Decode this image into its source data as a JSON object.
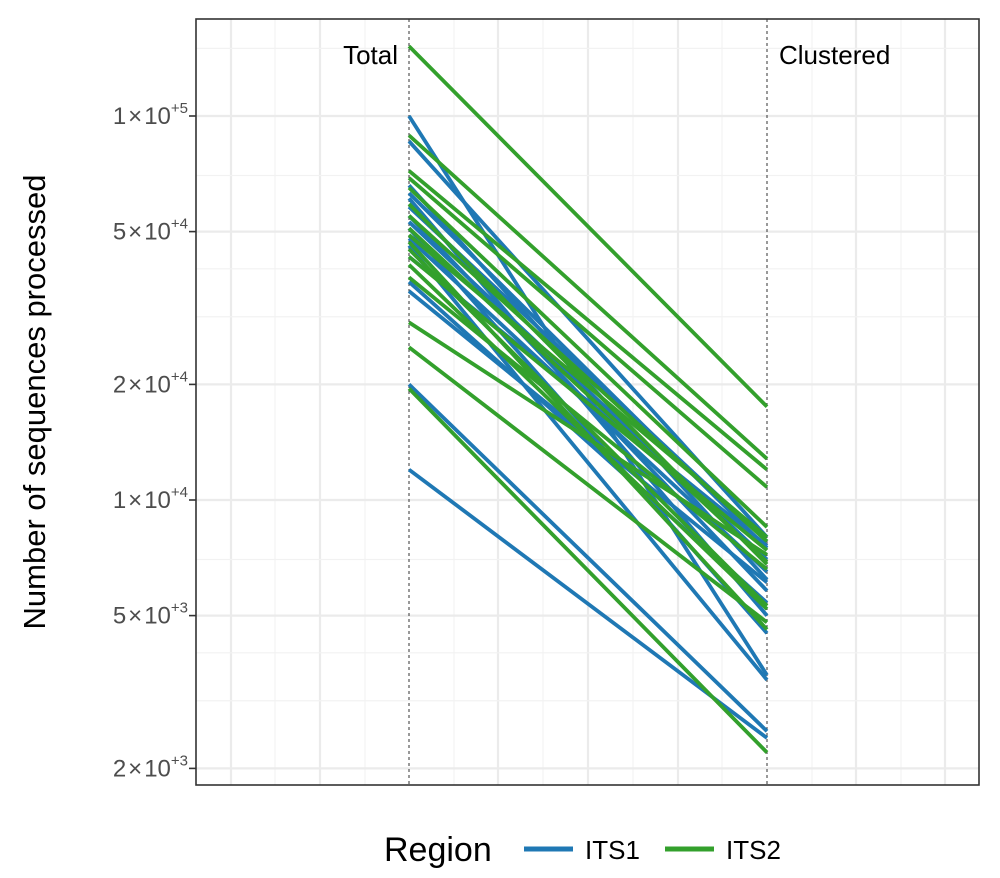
{
  "chart_data": {
    "type": "line",
    "title": "",
    "xlabel": "",
    "ylabel": "Number of sequences processed",
    "y_scale": "log10",
    "ylim": [
      1800,
      190000
    ],
    "yticks": [
      {
        "value": 2000,
        "mantissa": "2",
        "times": "×",
        "base": "10",
        "exponent": "+3"
      },
      {
        "value": 5000,
        "mantissa": "5",
        "times": "×",
        "base": "10",
        "exponent": "+3"
      },
      {
        "value": 10000,
        "mantissa": "1",
        "times": "×",
        "base": "10",
        "exponent": "+4"
      },
      {
        "value": 20000,
        "mantissa": "2",
        "times": "×",
        "base": "10",
        "exponent": "+4"
      },
      {
        "value": 50000,
        "mantissa": "5",
        "times": "×",
        "base": "10",
        "exponent": "+4"
      },
      {
        "value": 100000,
        "mantissa": "1",
        "times": "×",
        "base": "10",
        "exponent": "+5"
      }
    ],
    "x_stages": [
      "Total",
      "Clustered"
    ],
    "grid": true,
    "legend": {
      "title": "Region",
      "position": "bottom"
    },
    "colors": {
      "ITS1": "#1f78b4",
      "ITS2": "#33a02c"
    },
    "series": [
      {
        "name": "ITS1",
        "color": "#1f78b4",
        "segments": [
          [
            100000,
            3500
          ],
          [
            86000,
            8000
          ],
          [
            66000,
            6200
          ],
          [
            63000,
            7500
          ],
          [
            61000,
            5000
          ],
          [
            58000,
            7800
          ],
          [
            55000,
            5800
          ],
          [
            53000,
            7000
          ],
          [
            51000,
            4500
          ],
          [
            48000,
            6500
          ],
          [
            46000,
            3400
          ],
          [
            43000,
            7600
          ],
          [
            37000,
            5400
          ],
          [
            35000,
            6100
          ],
          [
            20000,
            2500
          ],
          [
            12000,
            2400
          ]
        ]
      },
      {
        "name": "ITS2",
        "color": "#33a02c",
        "segments": [
          [
            152000,
            17500
          ],
          [
            89000,
            12800
          ],
          [
            72000,
            12000
          ],
          [
            69000,
            10800
          ],
          [
            65000,
            8500
          ],
          [
            59000,
            6800
          ],
          [
            55000,
            7800
          ],
          [
            51000,
            6900
          ],
          [
            49000,
            8000
          ],
          [
            47000,
            4600
          ],
          [
            45000,
            5300
          ],
          [
            43000,
            7400
          ],
          [
            41000,
            5200
          ],
          [
            38000,
            6600
          ],
          [
            29000,
            7200
          ],
          [
            25000,
            4800
          ],
          [
            19500,
            2200
          ]
        ]
      }
    ]
  }
}
